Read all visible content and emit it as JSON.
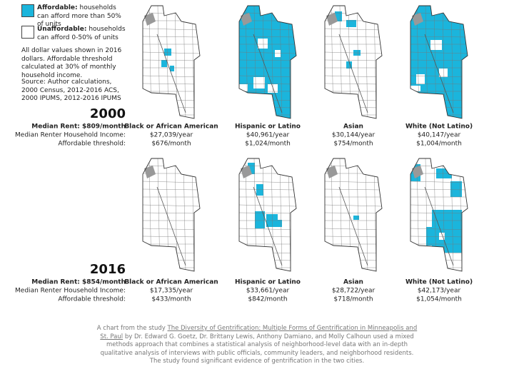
{
  "legend": [
    {
      "label": "Affordable:",
      "text": "households can afford more than 50% of units",
      "color": "#1bb5dc"
    },
    {
      "label": "Unaffordable:",
      "text": "households can afford 0-50% of units",
      "color": "#ffffff"
    }
  ],
  "note": "All dollar values shown in 2016 dollars. Affordable threshold calculated at 30% of monthly household income.",
  "source": "Source: Author calculations, 2000 Census, 2012-2016 ACS, 2000 IPUMS, 2012-2016 IPUMS",
  "row_labels": {
    "income": "Median Renter Household Income:",
    "threshold": "Affordable threshold:"
  },
  "years": [
    {
      "year": "2000",
      "median_rent": "Median Rent: $809/month",
      "groups": [
        {
          "name": "Black or African American",
          "income": "$27,039/year",
          "threshold": "$676/month"
        },
        {
          "name": "Hispanic or Latino",
          "income": "$40,961/year",
          "threshold": "$1,024/month"
        },
        {
          "name": "Asian",
          "income": "$30,144/year",
          "threshold": "$754/month"
        },
        {
          "name": "White (Not Latino)",
          "income": "$40,147/year",
          "threshold": "$1,004/month"
        }
      ]
    },
    {
      "year": "2016",
      "median_rent": "Median Rent: $854/month",
      "groups": [
        {
          "name": "Black or African American",
          "income": "$17,335/year",
          "threshold": "$433/month"
        },
        {
          "name": "Hispanic or Latino",
          "income": "$33,661/year",
          "threshold": "$842/month"
        },
        {
          "name": "Asian",
          "income": "$28,722/year",
          "threshold": "$718/month"
        },
        {
          "name": "White (Not Latino)",
          "income": "$42,173/year",
          "threshold": "$1,054/month"
        }
      ]
    }
  ],
  "footer": {
    "prefix": "A chart from the study",
    "link": "The Diversity of Gentrification: Multiple Forms of Gentrification in Minneapolis and St. Paul",
    "text": "by Dr. Edward G. Goetz, Dr. Brittany Lewis, Anthony Damiano, and Molly Calhoun used a mixed methods approach that combines a statistical analysis of neighborhood-level data with an in-depth qualitative analysis of interviews with public officials, community leaders, and neighborhood residents. The study found significant evidence of gentrification in the two cities."
  }
}
